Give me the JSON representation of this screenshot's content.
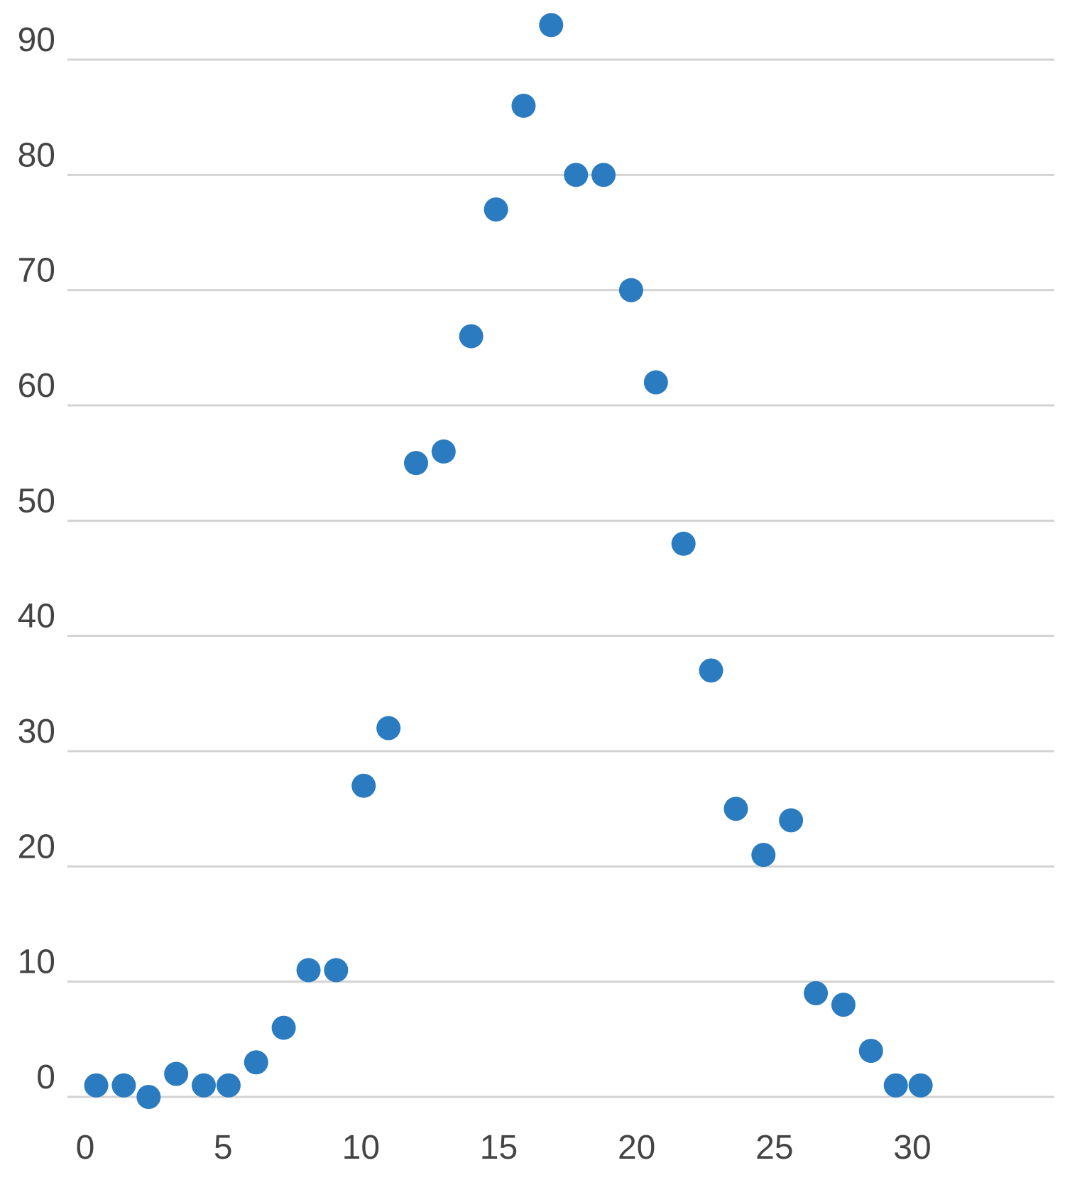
{
  "chart_data": {
    "type": "scatter",
    "title": "",
    "xlabel": "",
    "ylabel": "",
    "xlim": [
      0,
      35
    ],
    "ylim": [
      0,
      95
    ],
    "grid": true,
    "legend": "none",
    "marker_color": "#2a7bbf",
    "grid_color": "#d3d3d3",
    "x_ticks": [
      0,
      5,
      10,
      15,
      20,
      25,
      30
    ],
    "y_ticks": [
      0,
      10,
      20,
      30,
      40,
      50,
      60,
      70,
      80,
      90
    ],
    "series": [
      {
        "points": [
          {
            "x": 0.4,
            "y": 1
          },
          {
            "x": 1.4,
            "y": 1
          },
          {
            "x": 2.3,
            "y": 0
          },
          {
            "x": 3.3,
            "y": 2
          },
          {
            "x": 4.3,
            "y": 1
          },
          {
            "x": 5.2,
            "y": 1
          },
          {
            "x": 6.2,
            "y": 3
          },
          {
            "x": 7.2,
            "y": 6
          },
          {
            "x": 8.1,
            "y": 11
          },
          {
            "x": 9.1,
            "y": 11
          },
          {
            "x": 10.1,
            "y": 27
          },
          {
            "x": 11.0,
            "y": 32
          },
          {
            "x": 12.0,
            "y": 55
          },
          {
            "x": 13.0,
            "y": 56
          },
          {
            "x": 14.0,
            "y": 66
          },
          {
            "x": 14.9,
            "y": 77
          },
          {
            "x": 15.9,
            "y": 86
          },
          {
            "x": 16.9,
            "y": 93
          },
          {
            "x": 17.8,
            "y": 80
          },
          {
            "x": 18.8,
            "y": 80
          },
          {
            "x": 19.8,
            "y": 70
          },
          {
            "x": 20.7,
            "y": 62
          },
          {
            "x": 21.7,
            "y": 48
          },
          {
            "x": 22.7,
            "y": 37
          },
          {
            "x": 23.6,
            "y": 25
          },
          {
            "x": 24.6,
            "y": 21
          },
          {
            "x": 25.6,
            "y": 24
          },
          {
            "x": 26.5,
            "y": 9
          },
          {
            "x": 27.5,
            "y": 8
          },
          {
            "x": 28.5,
            "y": 4
          },
          {
            "x": 29.4,
            "y": 1
          },
          {
            "x": 30.3,
            "y": 1
          }
        ]
      }
    ]
  }
}
